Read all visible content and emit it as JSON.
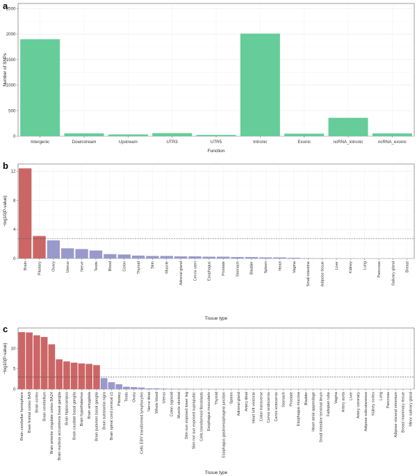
{
  "chart_data": [
    {
      "panel": "a",
      "type": "bar",
      "xlabel": "Function",
      "ylabel": "Number of SNPs",
      "ylim": [
        0,
        2600
      ],
      "yticks": [
        0,
        500,
        1000,
        1500,
        2000,
        2500
      ],
      "bar_color": "#66CC99",
      "categories": [
        "Intergenic",
        "Downstream",
        "Upstream",
        "UTR3",
        "UTR5",
        "Intronic",
        "Exonic",
        "ncRNA_intronic",
        "ncRNA_exonic"
      ],
      "values": [
        1900,
        55,
        35,
        60,
        25,
        2010,
        50,
        360,
        55
      ]
    },
    {
      "panel": "b",
      "type": "bar",
      "xlabel": "Tissue type",
      "ylabel": "−log10(P-value)",
      "ylim": [
        0,
        13
      ],
      "yticks": [
        0,
        4,
        8,
        12
      ],
      "significance_line": 2.7,
      "significant_color": "#CC6666",
      "nonsignificant_color": "#9999CC",
      "categories": [
        "Brain",
        "Pituitary",
        "Ovary",
        "Uterus",
        "Nerve",
        "Testis",
        "Blood",
        "Colon",
        "Thyroid",
        "Skin",
        "Muscle",
        "Adrenal gland",
        "Cervix uteri",
        "Esophagus",
        "Prostate",
        "Stomach",
        "Bladder",
        "Spleen",
        "Heart",
        "Vagina",
        "Small intestine",
        "Adipose tissue",
        "Liver",
        "Kidney",
        "Lung",
        "Pancreas",
        "Salivary gland",
        "Breast"
      ],
      "values": [
        12.4,
        3.1,
        2.5,
        1.4,
        1.3,
        1.1,
        0.6,
        0.55,
        0.4,
        0.35,
        0.35,
        0.3,
        0.3,
        0.25,
        0.25,
        0.2,
        0.2,
        0.15,
        0.15,
        0.1,
        0.05,
        0.02,
        0.0,
        0.0,
        0.0,
        0.0,
        0.0,
        0.0
      ]
    },
    {
      "panel": "c",
      "type": "bar",
      "xlabel": "Tissue type",
      "ylabel": "−log10(P-value)",
      "ylim": [
        0,
        15
      ],
      "yticks": [
        0,
        5,
        10
      ],
      "significance_line": 3.0,
      "significant_color": "#CC6666",
      "nonsignificant_color": "#9999CC",
      "categories": [
        "Brain cerebellar hemisphere",
        "Brain frontal cortex BA9",
        "Brain cortex",
        "Brain cerebellum",
        "Brain anterior cingulate cortex BA24",
        "Brain nucleus accumbens basal ganglia",
        "Brain hippocampus",
        "Brain caudate basal ganglia",
        "Brain hypothalamus",
        "Brain amygdala",
        "Brain putamen basal ganglia",
        "Brain substantia nigra",
        "Brain spinal cord cervical c1",
        "Pituitary",
        "Testis",
        "Ovary",
        "Cells EBV transformed lymphocytes",
        "Nerve tibial",
        "Whole blood",
        "Uterus",
        "Colon sigmoid",
        "Muscle skeletal",
        "Skin sun exposed lower leg",
        "Skin not sun exposed suprapubic",
        "Cells transformed fibroblasts",
        "Esophagus muscularis",
        "Thyroid",
        "Esophagus gastroesophageal junction",
        "Spleen",
        "Adrenal gland",
        "Artery tibial",
        "Heart left ventricle",
        "Colon transverse",
        "Cervix endocervix",
        "Cervix ectocervix",
        "Stomach",
        "Prostate",
        "Esophagus mucosa",
        "Bladder",
        "Heart atrial appendage",
        "Small intestine terminal ileum",
        "Fallopian tube",
        "Vagina",
        "Artery aorta",
        "Liver",
        "Artery coronary",
        "Adipose subcutaneous",
        "Kidney cortex",
        "Lung",
        "Pancreas",
        "Adipose visceral omentum",
        "Breast mammary tissue",
        "Minor salivary gland"
      ],
      "values": [
        14.0,
        13.9,
        13.2,
        12.8,
        11.0,
        7.3,
        6.8,
        6.5,
        6.3,
        6.2,
        5.9,
        2.7,
        1.7,
        1.2,
        0.6,
        0.5,
        0.4,
        0.2,
        0.2,
        0.15,
        0.1,
        0.1,
        0.1,
        0.05,
        0.05,
        0.05,
        0.05,
        0.03,
        0.03,
        0.02,
        0.02,
        0.02,
        0.02,
        0.01,
        0.01,
        0.01,
        0.01,
        0.01,
        0.01,
        0.0,
        0.0,
        0.0,
        0.0,
        0.0,
        0.0,
        0.0,
        0.0,
        0.0,
        0.0,
        0.0,
        0.0,
        0.0,
        0.0
      ]
    }
  ]
}
